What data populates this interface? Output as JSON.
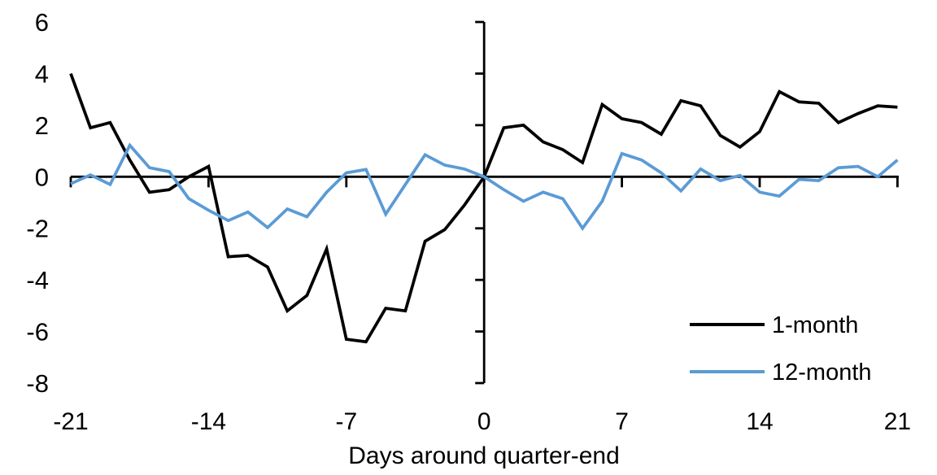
{
  "chart_data": {
    "type": "line",
    "title": "",
    "xlabel": "Days around quarter-end",
    "ylabel": "",
    "xlim": [
      -21,
      21
    ],
    "ylim": [
      -8,
      6
    ],
    "xticks": [
      -21,
      -14,
      -7,
      0,
      7,
      14,
      21
    ],
    "yticks": [
      6,
      4,
      2,
      0,
      -2,
      -4,
      -6,
      -8
    ],
    "grid": false,
    "legend_position": "inside-lower-right",
    "x": [
      -21,
      -20,
      -19,
      -18,
      -17,
      -16,
      -15,
      -14,
      -13,
      -12,
      -11,
      -10,
      -9,
      -8,
      -7,
      -6,
      -5,
      -4,
      -3,
      -2,
      -1,
      0,
      1,
      2,
      3,
      4,
      5,
      6,
      7,
      8,
      9,
      10,
      11,
      12,
      13,
      14,
      15,
      16,
      17,
      18,
      19,
      20,
      21
    ],
    "series": [
      {
        "name": "1-month",
        "color": "#000000",
        "values": [
          4.0,
          1.9,
          2.1,
          0.65,
          -0.6,
          -0.5,
          0.0,
          0.4,
          -3.1,
          -3.05,
          -3.5,
          -5.2,
          -4.6,
          -2.8,
          -6.3,
          -6.4,
          -5.1,
          -5.2,
          -2.5,
          -2.05,
          -1.1,
          0.0,
          1.9,
          2.0,
          1.35,
          1.05,
          0.55,
          2.8,
          2.25,
          2.1,
          1.65,
          2.95,
          2.75,
          1.6,
          1.15,
          1.75,
          3.3,
          2.9,
          2.85,
          2.1,
          2.45,
          2.75,
          2.7
        ]
      },
      {
        "name": "12-month",
        "color": "#5B9BD5",
        "values": [
          -0.27,
          0.07,
          -0.3,
          1.22,
          0.35,
          0.2,
          -0.85,
          -1.3,
          -1.7,
          -1.37,
          -1.97,
          -1.25,
          -1.55,
          -0.6,
          0.15,
          0.28,
          -1.45,
          -0.3,
          0.85,
          0.45,
          0.3,
          0.0,
          -0.5,
          -0.95,
          -0.6,
          -0.85,
          -2.0,
          -0.95,
          0.9,
          0.65,
          0.15,
          -0.55,
          0.3,
          -0.15,
          0.05,
          -0.6,
          -0.75,
          -0.1,
          -0.15,
          0.35,
          0.4,
          0.0,
          0.65
        ]
      }
    ]
  }
}
